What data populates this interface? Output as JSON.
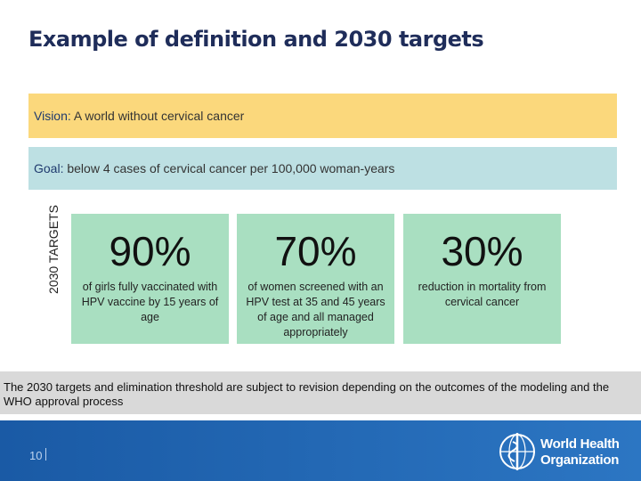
{
  "title": "Example of definition and 2030 targets",
  "vision": {
    "label": "Vision:",
    "text": "A world without cervical cancer"
  },
  "goal": {
    "label": "Goal:",
    "text": "below 4 cases of cervical cancer per 100,000 woman-years"
  },
  "targets_label": "2030 TARGETS",
  "targets": [
    {
      "value": "90%",
      "description": "of girls fully vaccinated with HPV vaccine by 15 years of age"
    },
    {
      "value": "70%",
      "description": "of women screened with an HPV test at 35 and 45 years of age and all managed appropriately"
    },
    {
      "value": "30%",
      "description": "reduction in mortality from cervical cancer"
    }
  ],
  "note": "The 2030 targets and elimination threshold are subject to revision depending on the outcomes of the modeling and the WHO approval process",
  "footer": {
    "page_number": "10",
    "logo_line1": "World Health",
    "logo_line2": "Organization"
  }
}
